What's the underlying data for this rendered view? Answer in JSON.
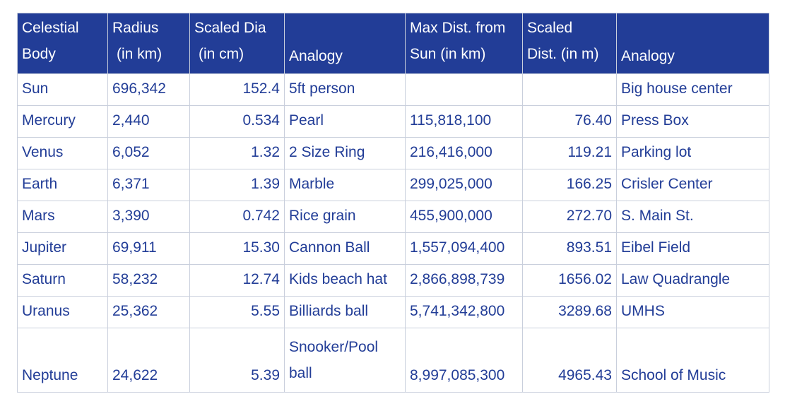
{
  "headers": {
    "celestial_body": [
      "Celestial",
      "Body"
    ],
    "radius": [
      "Radius",
      "(in km)"
    ],
    "scaled_dia": [
      "Scaled Dia",
      "(in cm)"
    ],
    "analogy1": "Analogy",
    "max_dist": [
      "Max Dist. from",
      "Sun (in km)"
    ],
    "scaled_dist": [
      "Scaled",
      "Dist. (in m)"
    ],
    "analogy2": "Analogy"
  },
  "rows": [
    {
      "body": "Sun",
      "radius": "696,342",
      "scaled_dia": "152.4",
      "analogy": "5ft person",
      "max_dist": "",
      "scaled_dist": "",
      "analogy2": "Big house center"
    },
    {
      "body": "Mercury",
      "radius": "2,440",
      "scaled_dia": "0.534",
      "analogy": "Pearl",
      "max_dist": "115,818,100",
      "scaled_dist": "76.40",
      "analogy2": "Press Box"
    },
    {
      "body": "Venus",
      "radius": "6,052",
      "scaled_dia": "1.32",
      "analogy": "2 Size Ring",
      "max_dist": "216,416,000",
      "scaled_dist": "119.21",
      "analogy2": "Parking lot"
    },
    {
      "body": "Earth",
      "radius": "6,371",
      "scaled_dia": "1.39",
      "analogy": "Marble",
      "max_dist": "299,025,000",
      "scaled_dist": "166.25",
      "analogy2": "Crisler Center"
    },
    {
      "body": "Mars",
      "radius": "3,390",
      "scaled_dia": "0.742",
      "analogy": "Rice grain",
      "max_dist": "455,900,000",
      "scaled_dist": "272.70",
      "analogy2": "S. Main St."
    },
    {
      "body": "Jupiter",
      "radius": "69,911",
      "scaled_dia": "15.30",
      "analogy": "Cannon Ball",
      "max_dist": "1,557,094,400",
      "scaled_dist": "893.51",
      "analogy2": "Eibel Field"
    },
    {
      "body": "Saturn",
      "radius": "58,232",
      "scaled_dia": "12.74",
      "analogy": "Kids beach hat",
      "max_dist": "2,866,898,739",
      "scaled_dist": "1656.02",
      "analogy2": "Law Quadrangle"
    },
    {
      "body": "Uranus",
      "radius": "25,362",
      "scaled_dia": "5.55",
      "analogy": "Billiards ball",
      "max_dist": "5,741,342,800",
      "scaled_dist": "3289.68",
      "analogy2": "UMHS"
    },
    {
      "body": "Neptune",
      "radius": "24,622",
      "scaled_dia": "5.39",
      "analogy": "Snooker/Pool ball",
      "max_dist": "8,997,085,300",
      "scaled_dist": "4965.43",
      "analogy2": "School of Music"
    }
  ]
}
